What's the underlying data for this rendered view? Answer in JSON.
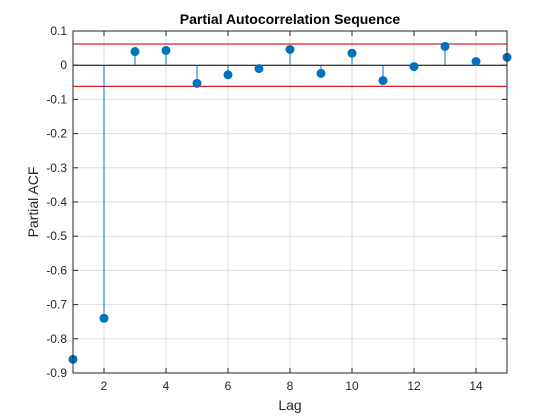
{
  "chart_data": {
    "type": "stem",
    "title": "Partial Autocorrelation Sequence",
    "xlabel": "Lag",
    "ylabel": "Partial ACF",
    "xlim": [
      1,
      15
    ],
    "ylim": [
      -0.9,
      0.1
    ],
    "xticks": [
      2,
      4,
      6,
      8,
      10,
      12,
      14
    ],
    "yticks": [
      0.1,
      0,
      -0.1,
      -0.2,
      -0.3,
      -0.4,
      -0.5,
      -0.6,
      -0.7,
      -0.8,
      -0.9
    ],
    "grid": true,
    "x": [
      1,
      2,
      3,
      4,
      5,
      6,
      7,
      8,
      9,
      10,
      11,
      12,
      13,
      14,
      15
    ],
    "values": [
      -0.86,
      -0.74,
      0.04,
      0.043,
      -0.053,
      -0.028,
      -0.01,
      0.046,
      -0.024,
      0.035,
      -0.045,
      -0.004,
      0.055,
      0.011,
      0.023
    ],
    "confidence_bounds": [
      0.062,
      -0.062
    ],
    "colors": {
      "stem": "#0072BD",
      "bound": "#E02020",
      "grid": "#DFDFDF",
      "axis": "#262626",
      "zero_line": "#000000"
    }
  }
}
